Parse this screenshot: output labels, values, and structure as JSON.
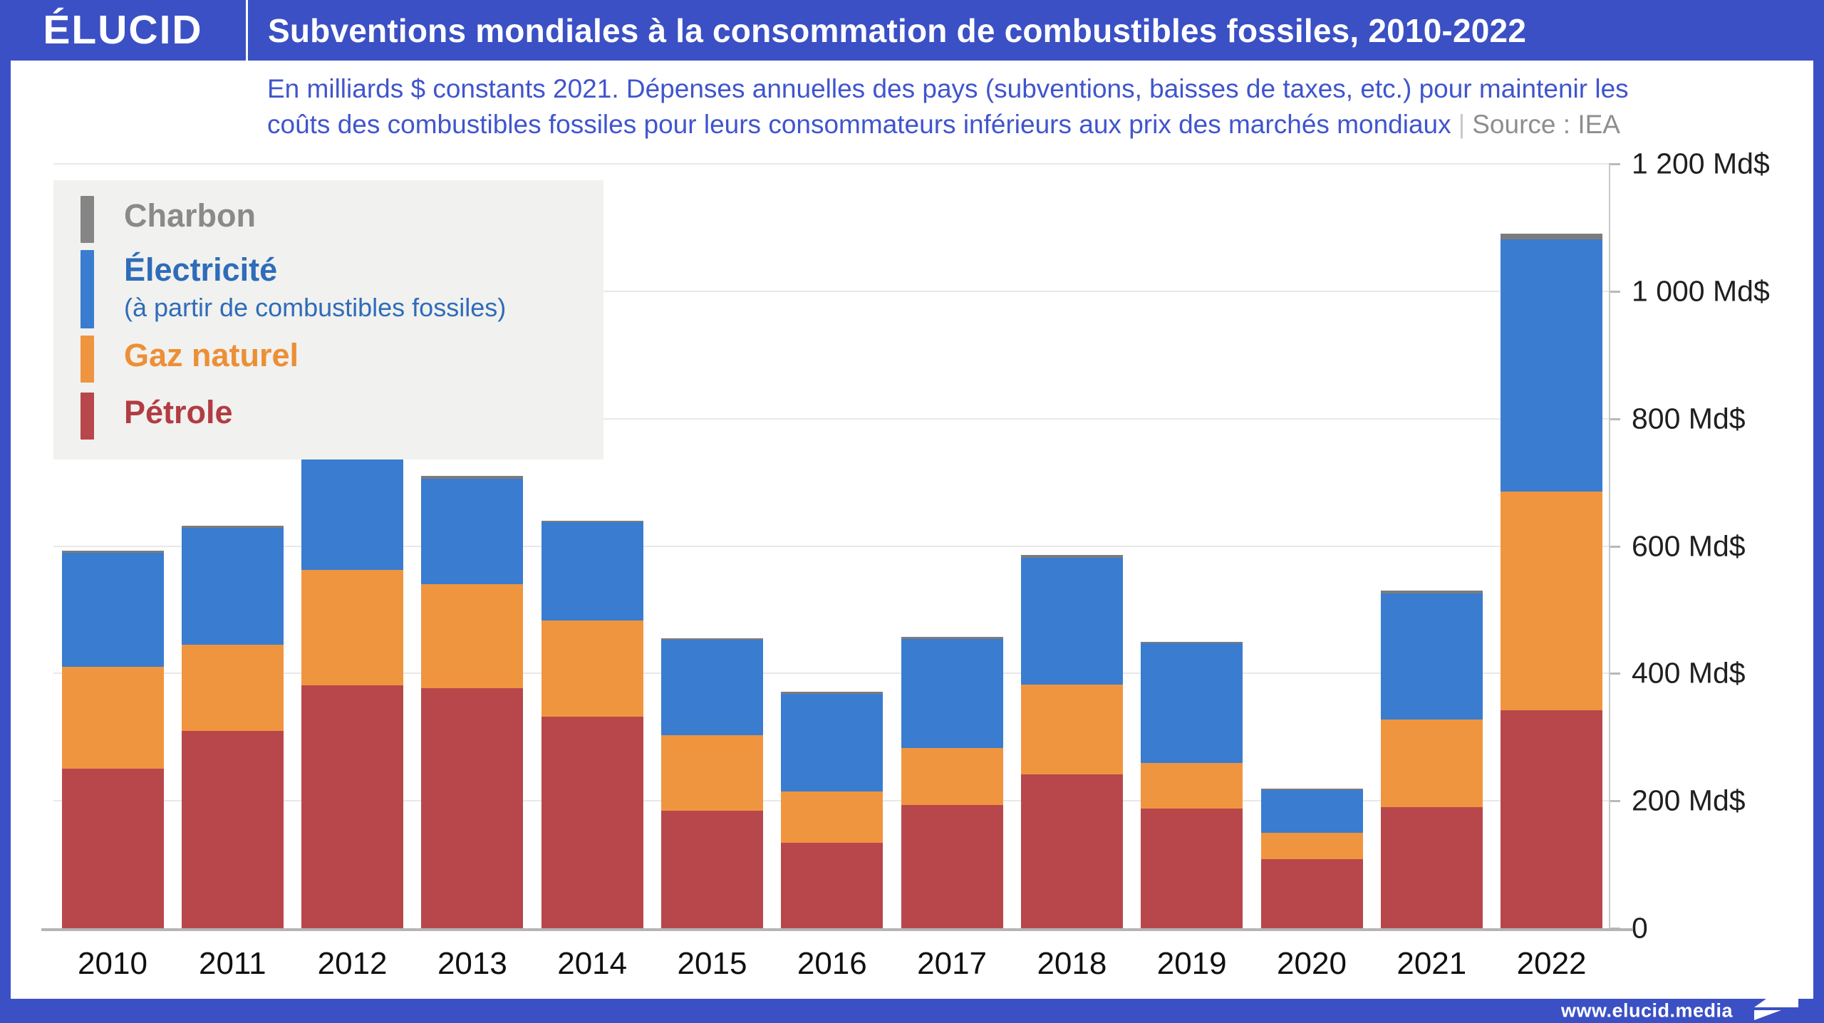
{
  "header": {
    "logo": "ÉLUCID",
    "title": "Subventions mondiales à la consommation de combustibles fossiles, 2010-2022"
  },
  "subtitle": {
    "line1": "En milliards $ constants 2021. Dépenses annuelles des pays (subventions, baisses de taxes, etc.) pour maintenir les",
    "line2": "coûts des combustibles fossiles pour leurs consommateurs inférieurs aux prix des marchés mondiaux",
    "separator": "|",
    "source": "Source : IEA"
  },
  "legend": {
    "items": [
      {
        "label": "Charbon",
        "sublabel": "",
        "color": "#858585"
      },
      {
        "label": "Électricité",
        "sublabel": "(à partir de combustibles fossiles)",
        "color": "#3a7cd0"
      },
      {
        "label": "Gaz naturel",
        "sublabel": "",
        "color": "#f0953f"
      },
      {
        "label": "Pétrole",
        "sublabel": "",
        "color": "#b8474c"
      }
    ]
  },
  "chart_data": {
    "type": "bar",
    "stacked": true,
    "unit": "Md$",
    "title": "Subventions mondiales à la consommation de combustibles fossiles, 2010-2022",
    "categories": [
      "2010",
      "2011",
      "2012",
      "2013",
      "2014",
      "2015",
      "2016",
      "2017",
      "2018",
      "2019",
      "2020",
      "2021",
      "2022"
    ],
    "series": [
      {
        "name": "Pétrole",
        "color": "#b8474c",
        "values": [
          250,
          310,
          381,
          377,
          332,
          184,
          134,
          193,
          242,
          188,
          109,
          190,
          342
        ]
      },
      {
        "name": "Gaz naturel",
        "color": "#f0953f",
        "values": [
          161,
          135,
          181,
          163,
          151,
          119,
          81,
          90,
          140,
          71,
          41,
          138,
          344
        ]
      },
      {
        "name": "Électricité (à partir de combustibles fossiles)",
        "color": "#3a7cd0",
        "values": [
          178,
          183,
          186,
          166,
          154,
          150,
          153,
          171,
          200,
          188,
          67,
          198,
          395
        ]
      },
      {
        "name": "Charbon",
        "color": "#7c7c7c",
        "values": [
          4,
          4,
          5,
          4,
          3,
          2,
          3,
          3,
          4,
          3,
          2,
          4,
          10
        ]
      }
    ],
    "totals": [
      593,
      632,
      753,
      710,
      640,
      455,
      371,
      457,
      586,
      450,
      219,
      530,
      1091
    ],
    "ylim": [
      0,
      1200
    ],
    "yticks": [
      {
        "value": 0,
        "label": "0"
      },
      {
        "value": 200,
        "label": "200 Md$"
      },
      {
        "value": 400,
        "label": "400 Md$"
      },
      {
        "value": 600,
        "label": "600 Md$"
      },
      {
        "value": 800,
        "label": "800 Md$"
      },
      {
        "value": 1000,
        "label": "1 000 Md$"
      },
      {
        "value": 1200,
        "label": "1 200 Md$"
      }
    ],
    "grid": true,
    "legend_position": "top-left",
    "y_axis_side": "right"
  },
  "footer": {
    "url": "www.elucid.media"
  }
}
